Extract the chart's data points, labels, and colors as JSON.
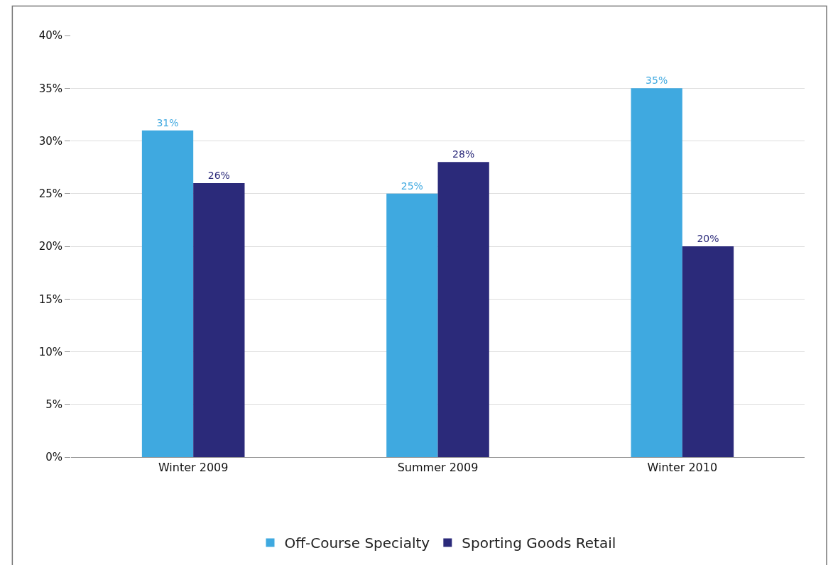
{
  "chart_data": {
    "type": "bar",
    "categories": [
      "Winter 2009",
      "Summer 2009",
      "Winter 2010"
    ],
    "series": [
      {
        "name": "Off-Course Specialty",
        "color": "#3fa9e0",
        "values": [
          31,
          25,
          35
        ],
        "value_labels": [
          "31%",
          "25%",
          "35%"
        ]
      },
      {
        "name": "Sporting Goods Retail",
        "color": "#2b2a7a",
        "values": [
          26,
          28,
          20
        ],
        "value_labels": [
          "26%",
          "28%",
          "20%"
        ]
      }
    ],
    "ylim": [
      0,
      40
    ],
    "yticks": [
      {
        "value": 0,
        "label": "0%"
      },
      {
        "value": 5,
        "label": "5%"
      },
      {
        "value": 10,
        "label": "10%"
      },
      {
        "value": 15,
        "label": "15%"
      },
      {
        "value": 20,
        "label": "20%"
      },
      {
        "value": 25,
        "label": "25%"
      },
      {
        "value": 30,
        "label": "30%"
      },
      {
        "value": 35,
        "label": "35%"
      },
      {
        "value": 40,
        "label": "40%"
      }
    ],
    "grid": "y",
    "legend": "bottom"
  }
}
